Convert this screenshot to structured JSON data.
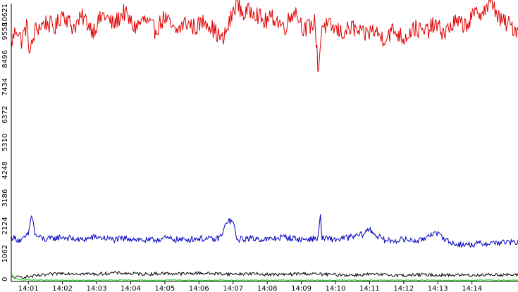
{
  "chart_data": {
    "type": "line",
    "title": "",
    "xlabel": "",
    "ylabel": "",
    "ylim": [
      0,
      10621
    ],
    "grid": false,
    "legend": "none",
    "y_ticks": [
      "0",
      "1062",
      "2124",
      "3186",
      "4248",
      "5310",
      "6372",
      "7434",
      "8496",
      "9558",
      "10621"
    ],
    "x_ticks": [
      "14:01",
      "14:02",
      "14:03",
      "14:04",
      "14:05",
      "14:06",
      "14:07",
      "14:08",
      "14:09",
      "14:10",
      "14:11",
      "14:12",
      "14:13",
      "14:14"
    ],
    "x_range_minutes": [
      0,
      14.85
    ],
    "first_tick_minute": 0.5,
    "series": [
      {
        "color": "#e00000",
        "points": [
          [
            0,
            9100
          ],
          [
            0.15,
            9700
          ],
          [
            0.3,
            9200
          ],
          [
            0.45,
            9800
          ],
          [
            0.55,
            8700
          ],
          [
            0.7,
            9600
          ],
          [
            1,
            9900
          ],
          [
            1.3,
            9700
          ],
          [
            1.5,
            10300
          ],
          [
            1.8,
            9700
          ],
          [
            2.1,
            10100
          ],
          [
            2.4,
            9600
          ],
          [
            2.7,
            10200
          ],
          [
            3,
            9800
          ],
          [
            3.3,
            10300
          ],
          [
            3.6,
            9700
          ],
          [
            3.9,
            10000
          ],
          [
            4.2,
            9600
          ],
          [
            4.5,
            10100
          ],
          [
            4.8,
            9500
          ],
          [
            5.1,
            9900
          ],
          [
            5.4,
            9700
          ],
          [
            5.7,
            10000
          ],
          [
            6,
            9500
          ],
          [
            6.2,
            9200
          ],
          [
            6.4,
            9900
          ],
          [
            6.6,
            10700
          ],
          [
            6.8,
            10200
          ],
          [
            7.1,
            10400
          ],
          [
            7.4,
            9900
          ],
          [
            7.7,
            10100
          ],
          [
            8,
            9700
          ],
          [
            8.3,
            10400
          ],
          [
            8.6,
            9600
          ],
          [
            8.9,
            9900
          ],
          [
            9.0,
            8000
          ],
          [
            9.1,
            9800
          ],
          [
            9.4,
            9700
          ],
          [
            9.7,
            9500
          ],
          [
            10,
            9700
          ],
          [
            10.3,
            9400
          ],
          [
            10.6,
            9600
          ],
          [
            10.9,
            9300
          ],
          [
            11.2,
            9600
          ],
          [
            11.5,
            9300
          ],
          [
            11.8,
            9700
          ],
          [
            12.1,
            9500
          ],
          [
            12.4,
            9800
          ],
          [
            12.7,
            9500
          ],
          [
            13,
            9900
          ],
          [
            13.3,
            9800
          ],
          [
            13.6,
            10200
          ],
          [
            13.9,
            10400
          ],
          [
            14.1,
            10700
          ],
          [
            14.3,
            10000
          ],
          [
            14.6,
            9800
          ],
          [
            14.85,
            9600
          ]
        ]
      },
      {
        "color": "#0000c0",
        "points": [
          [
            0,
            1700
          ],
          [
            0.3,
            1550
          ],
          [
            0.5,
            1800
          ],
          [
            0.6,
            2600
          ],
          [
            0.7,
            1750
          ],
          [
            1,
            1600
          ],
          [
            1.5,
            1700
          ],
          [
            2,
            1580
          ],
          [
            2.5,
            1700
          ],
          [
            3,
            1600
          ],
          [
            3.5,
            1650
          ],
          [
            4,
            1550
          ],
          [
            4.5,
            1650
          ],
          [
            5,
            1580
          ],
          [
            5.5,
            1650
          ],
          [
            6,
            1600
          ],
          [
            6.2,
            1800
          ],
          [
            6.3,
            2300
          ],
          [
            6.5,
            2300
          ],
          [
            6.6,
            1600
          ],
          [
            7,
            1650
          ],
          [
            7.5,
            1600
          ],
          [
            8,
            1700
          ],
          [
            8.5,
            1600
          ],
          [
            9,
            1650
          ],
          [
            9.05,
            2700
          ],
          [
            9.1,
            1650
          ],
          [
            9.5,
            1600
          ],
          [
            10,
            1700
          ],
          [
            10.3,
            1800
          ],
          [
            10.5,
            2000
          ],
          [
            10.7,
            1750
          ],
          [
            11,
            1550
          ],
          [
            11.5,
            1600
          ],
          [
            12,
            1550
          ],
          [
            12.3,
            1850
          ],
          [
            12.6,
            1750
          ],
          [
            12.9,
            1450
          ],
          [
            13.3,
            1400
          ],
          [
            13.8,
            1450
          ],
          [
            14.2,
            1480
          ],
          [
            14.5,
            1500
          ],
          [
            14.85,
            1480
          ]
        ]
      },
      {
        "color": "#000000",
        "points": [
          [
            0,
            150
          ],
          [
            0.5,
            180
          ],
          [
            1,
            250
          ],
          [
            1.5,
            320
          ],
          [
            2,
            300
          ],
          [
            2.5,
            280
          ],
          [
            3,
            330
          ],
          [
            3.5,
            300
          ],
          [
            4,
            280
          ],
          [
            4.5,
            310
          ],
          [
            5,
            290
          ],
          [
            5.5,
            320
          ],
          [
            6,
            300
          ],
          [
            6.5,
            280
          ],
          [
            7,
            300
          ],
          [
            7.5,
            270
          ],
          [
            8,
            260
          ],
          [
            8.5,
            300
          ],
          [
            9,
            280
          ],
          [
            9.5,
            260
          ],
          [
            10,
            240
          ],
          [
            10.5,
            270
          ],
          [
            11,
            250
          ],
          [
            11.5,
            230
          ],
          [
            12,
            260
          ],
          [
            12.5,
            240
          ],
          [
            13,
            250
          ],
          [
            13.5,
            240
          ],
          [
            14,
            260
          ],
          [
            14.5,
            250
          ],
          [
            14.85,
            240
          ]
        ]
      },
      {
        "color": "#00cc00",
        "points": [
          [
            0,
            300
          ],
          [
            0.1,
            120
          ],
          [
            0.3,
            60
          ],
          [
            1,
            50
          ],
          [
            2,
            45
          ],
          [
            3,
            50
          ],
          [
            4,
            48
          ],
          [
            5,
            50
          ],
          [
            6,
            45
          ],
          [
            7,
            48
          ],
          [
            8,
            50
          ],
          [
            9,
            46
          ],
          [
            10,
            50
          ],
          [
            11,
            48
          ],
          [
            12,
            50
          ],
          [
            13,
            47
          ],
          [
            14,
            50
          ],
          [
            14.85,
            48
          ]
        ]
      }
    ]
  }
}
